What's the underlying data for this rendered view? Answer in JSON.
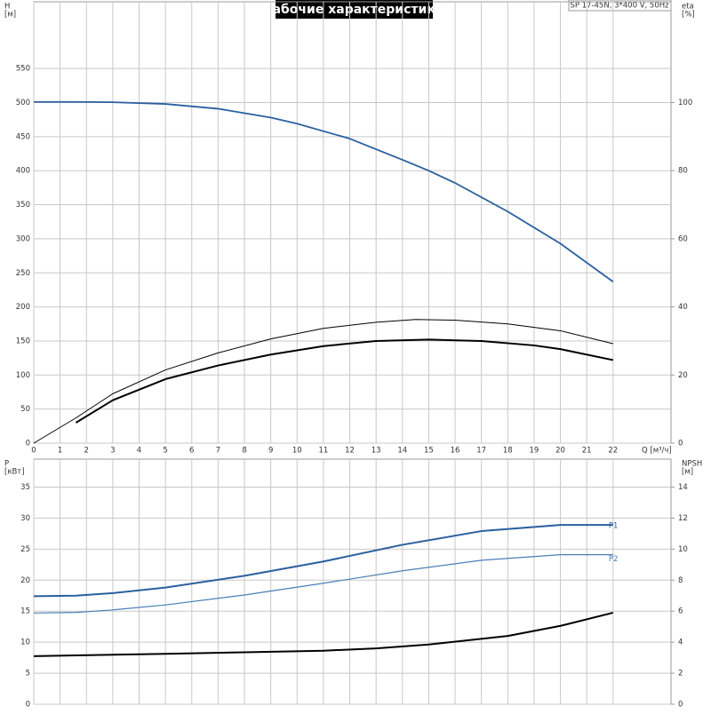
{
  "chart_data": [
    {
      "type": "line",
      "title": "Рабочие характеристики",
      "subtitle": "SP 17-45N, 3*400 V, 50Hz",
      "xlabel": "Q [м³/ч]",
      "ylabel": "H",
      "yunit": "[м]",
      "y2label": "eta",
      "y2unit": "[%]",
      "xlim": [
        0,
        24.2
      ],
      "xticks": [
        0,
        1,
        2,
        3,
        4,
        5,
        6,
        7,
        8,
        9,
        10,
        11,
        12,
        13,
        14,
        15,
        16,
        17,
        18,
        19,
        20,
        21,
        22
      ],
      "ylim": [
        0,
        648
      ],
      "yticks": [
        0,
        50,
        100,
        150,
        200,
        250,
        300,
        350,
        400,
        450,
        500,
        550
      ],
      "y2lim": [
        0,
        129.6
      ],
      "y2ticks": [
        0,
        20,
        40,
        60,
        80,
        100
      ],
      "grid": true,
      "series": [
        {
          "color": "#2a5f9e",
          "x": [
            0,
            1.6,
            3,
            5,
            7,
            9,
            10,
            12,
            14,
            15,
            16,
            18,
            20,
            22
          ],
          "values": [
            501,
            501,
            500.5,
            498,
            491,
            478,
            469,
            447,
            416,
            400,
            382,
            340,
            293,
            237
          ]
        },
        {
          "color": "#000000",
          "axis": "y2",
          "x": [
            0,
            1.6,
            3,
            5,
            7,
            9,
            11,
            13,
            14.5,
            16,
            18,
            20,
            22
          ],
          "values": [
            0,
            7.4,
            14.5,
            21.5,
            26.5,
            30.6,
            33.7,
            35.5,
            36.3,
            36.1,
            35,
            33,
            29.2
          ]
        },
        {
          "color": "#000000",
          "axis": "y2",
          "x": [
            1.6,
            3,
            5,
            7,
            9,
            11,
            13,
            15,
            17,
            19,
            20,
            22
          ],
          "values": [
            6,
            12.6,
            18.8,
            22.8,
            26,
            28.5,
            30,
            30.4,
            30,
            28.7,
            27.6,
            24.4
          ]
        }
      ]
    },
    {
      "type": "line",
      "ylabel": "P",
      "yunit": "[кВт]",
      "y2label": "NPSH",
      "y2unit": "[м]",
      "xlim": [
        0,
        24.2
      ],
      "ylim": [
        0,
        39.5
      ],
      "yticks": [
        0,
        5,
        10,
        15,
        20,
        25,
        30,
        35
      ],
      "y2lim": [
        0,
        15.8
      ],
      "y2ticks": [
        0,
        2,
        4,
        6,
        8,
        10,
        12,
        14
      ],
      "grid": true,
      "series": [
        {
          "name": "P1",
          "color": "#2a5f9e",
          "x": [
            0,
            1.6,
            3,
            5,
            8,
            11,
            14,
            17,
            20,
            22
          ],
          "values": [
            17.4,
            17.5,
            17.9,
            18.8,
            20.7,
            23,
            25.7,
            27.9,
            28.9,
            28.9
          ]
        },
        {
          "name": "P2",
          "color": "#4a7fb5",
          "x": [
            0,
            1.6,
            3,
            5,
            8,
            11,
            14,
            17,
            20,
            22
          ],
          "values": [
            14.7,
            14.8,
            15.2,
            16,
            17.6,
            19.5,
            21.5,
            23.2,
            24.1,
            24.1
          ]
        },
        {
          "color": "#000000",
          "axis": "y2",
          "x": [
            0,
            1.6,
            5,
            8,
            11,
            13,
            15,
            18,
            20,
            22
          ],
          "values": [
            3.1,
            3.15,
            3.25,
            3.35,
            3.45,
            3.6,
            3.85,
            4.4,
            5.05,
            5.9
          ]
        }
      ]
    }
  ]
}
